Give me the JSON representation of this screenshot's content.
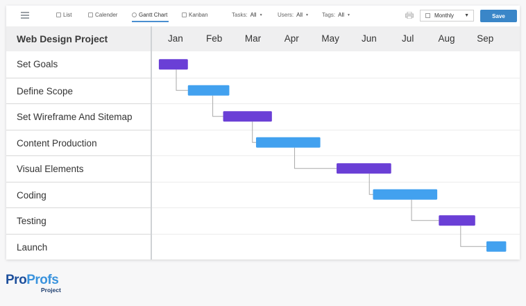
{
  "toolbar": {
    "views": [
      {
        "label": "List",
        "icon": "list-icon"
      },
      {
        "label": "Calender",
        "icon": "calendar-icon"
      },
      {
        "label": "Gantt Chart",
        "icon": "user-icon"
      },
      {
        "label": "Kanban",
        "icon": "kanban-icon"
      }
    ],
    "active_view": "Gantt Chart",
    "filters": [
      {
        "label": "Tasks:",
        "value": "All"
      },
      {
        "label": "Users:",
        "value": "All"
      },
      {
        "label": "Tags:",
        "value": "All"
      }
    ],
    "scale_select": "Monthly",
    "save_label": "Save"
  },
  "gantt": {
    "project_title": "Web Design Project",
    "months": [
      "Jan",
      "Feb",
      "Mar",
      "Apr",
      "May",
      "Jun",
      "Jul",
      "Aug",
      "Sep"
    ],
    "tasks": [
      {
        "name": "Set Goals",
        "start": 0.07,
        "end": 0.82,
        "color": "#6a3fd6"
      },
      {
        "name": "Define Scope",
        "start": 0.82,
        "end": 1.89,
        "color": "#42a1ef"
      },
      {
        "name": "Set Wireframe And Sitemap",
        "start": 1.73,
        "end": 2.99,
        "color": "#6a3fd6"
      },
      {
        "name": "Content Production",
        "start": 2.58,
        "end": 4.24,
        "color": "#42a1ef"
      },
      {
        "name": "Visual Elements",
        "start": 4.66,
        "end": 6.07,
        "color": "#6a3fd6"
      },
      {
        "name": "Coding",
        "start": 5.6,
        "end": 7.26,
        "color": "#42a1ef"
      },
      {
        "name": "Testing",
        "start": 7.3,
        "end": 8.24,
        "color": "#6a3fd6"
      },
      {
        "name": "Launch",
        "start": 8.53,
        "end": 9.04,
        "color": "#42a1ef"
      }
    ],
    "connector_color": "#a9a9a9"
  },
  "brand": {
    "logo_part1": "Pro",
    "logo_part2": "Profs",
    "logo_sub": "Project"
  }
}
